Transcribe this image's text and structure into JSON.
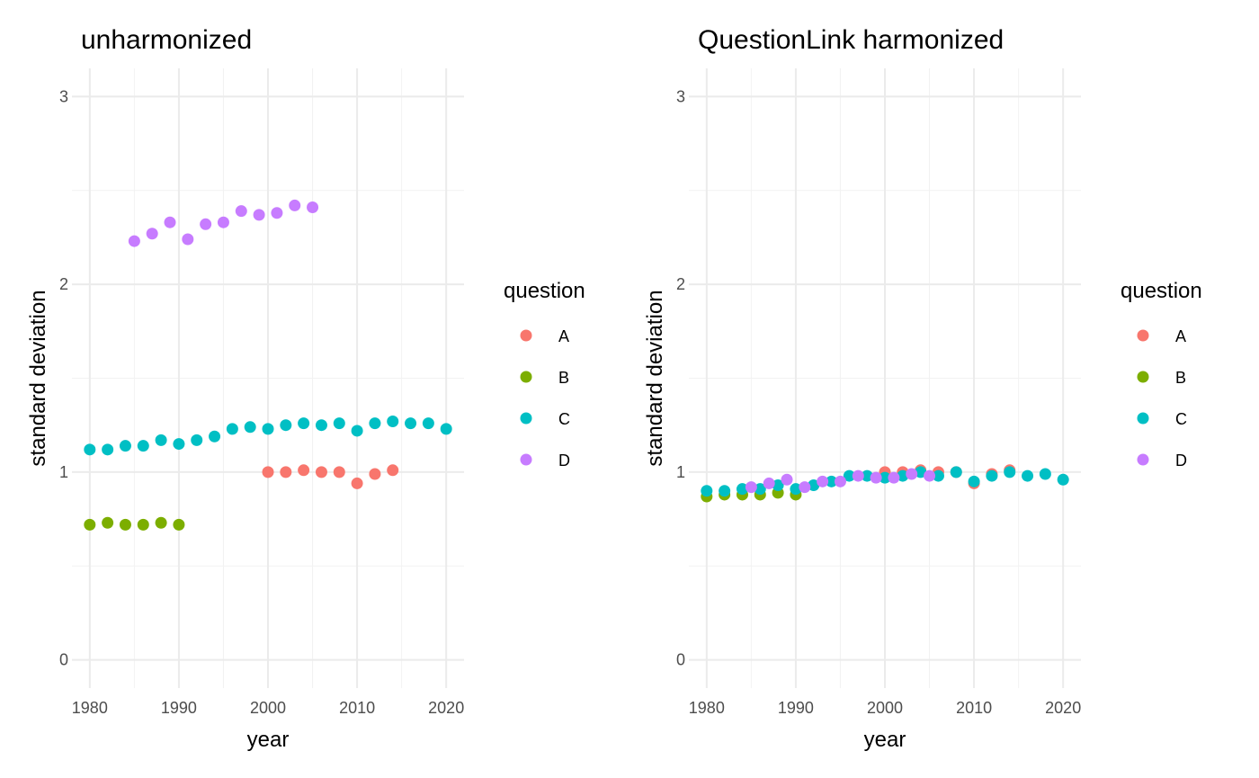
{
  "legend": {
    "title": "question",
    "entries": [
      {
        "label": "A",
        "color": "#F8766D"
      },
      {
        "label": "B",
        "color": "#7CAE00"
      },
      {
        "label": "C",
        "color": "#00BFC4"
      },
      {
        "label": "D",
        "color": "#C77CFF"
      }
    ]
  },
  "chart_data": [
    {
      "type": "scatter",
      "title": "unharmonized",
      "xlabel": "year",
      "ylabel": "standard deviation",
      "xlim": [
        1978,
        2022
      ],
      "ylim": [
        -0.15,
        3.15
      ],
      "xticks": [
        1980,
        1990,
        2000,
        2010,
        2020
      ],
      "yticks": [
        0,
        1,
        2,
        3
      ],
      "grid": true,
      "legend_position": "right",
      "series": [
        {
          "name": "A",
          "color": "#F8766D",
          "x": [
            2000,
            2002,
            2004,
            2006,
            2008,
            2010,
            2012,
            2014
          ],
          "y": [
            1.0,
            1.0,
            1.01,
            1.0,
            1.0,
            0.94,
            0.99,
            1.01
          ]
        },
        {
          "name": "B",
          "color": "#7CAE00",
          "x": [
            1980,
            1982,
            1984,
            1986,
            1988,
            1990
          ],
          "y": [
            0.72,
            0.73,
            0.72,
            0.72,
            0.73,
            0.72
          ]
        },
        {
          "name": "C",
          "color": "#00BFC4",
          "x": [
            1980,
            1982,
            1984,
            1986,
            1988,
            1990,
            1992,
            1994,
            1996,
            1998,
            2000,
            2002,
            2004,
            2006,
            2008,
            2010,
            2012,
            2014,
            2016,
            2018,
            2020
          ],
          "y": [
            1.12,
            1.12,
            1.14,
            1.14,
            1.17,
            1.15,
            1.17,
            1.19,
            1.23,
            1.24,
            1.23,
            1.25,
            1.26,
            1.25,
            1.26,
            1.22,
            1.26,
            1.27,
            1.26,
            1.26,
            1.23
          ]
        },
        {
          "name": "D",
          "color": "#C77CFF",
          "x": [
            1985,
            1987,
            1989,
            1991,
            1993,
            1995,
            1997,
            1999,
            2001,
            2003,
            2005
          ],
          "y": [
            2.23,
            2.27,
            2.33,
            2.24,
            2.32,
            2.33,
            2.39,
            2.37,
            2.38,
            2.42,
            2.41
          ]
        }
      ]
    },
    {
      "type": "scatter",
      "title": "QuestionLink harmonized",
      "xlabel": "year",
      "ylabel": "standard deviation",
      "xlim": [
        1978,
        2022
      ],
      "ylim": [
        -0.15,
        3.15
      ],
      "xticks": [
        1980,
        1990,
        2000,
        2010,
        2020
      ],
      "yticks": [
        0,
        1,
        2,
        3
      ],
      "grid": true,
      "legend_position": "right",
      "series": [
        {
          "name": "A",
          "color": "#F8766D",
          "x": [
            2000,
            2002,
            2004,
            2006,
            2008,
            2010,
            2012,
            2014
          ],
          "y": [
            1.0,
            1.0,
            1.01,
            1.0,
            1.0,
            0.94,
            0.99,
            1.01
          ]
        },
        {
          "name": "B",
          "color": "#7CAE00",
          "x": [
            1980,
            1982,
            1984,
            1986,
            1988,
            1990
          ],
          "y": [
            0.87,
            0.88,
            0.88,
            0.88,
            0.89,
            0.88
          ]
        },
        {
          "name": "C",
          "color": "#00BFC4",
          "x": [
            1980,
            1982,
            1984,
            1986,
            1988,
            1990,
            1992,
            1994,
            1996,
            1998,
            2000,
            2002,
            2004,
            2006,
            2008,
            2010,
            2012,
            2014,
            2016,
            2018,
            2020
          ],
          "y": [
            0.9,
            0.9,
            0.91,
            0.91,
            0.93,
            0.91,
            0.93,
            0.95,
            0.98,
            0.98,
            0.97,
            0.98,
            1.0,
            0.98,
            1.0,
            0.95,
            0.98,
            1.0,
            0.98,
            0.99,
            0.96
          ]
        },
        {
          "name": "D",
          "color": "#C77CFF",
          "x": [
            1985,
            1987,
            1989,
            1991,
            1993,
            1995,
            1997,
            1999,
            2001,
            2003,
            2005
          ],
          "y": [
            0.92,
            0.94,
            0.96,
            0.92,
            0.95,
            0.95,
            0.98,
            0.97,
            0.97,
            0.99,
            0.98
          ]
        }
      ]
    }
  ]
}
